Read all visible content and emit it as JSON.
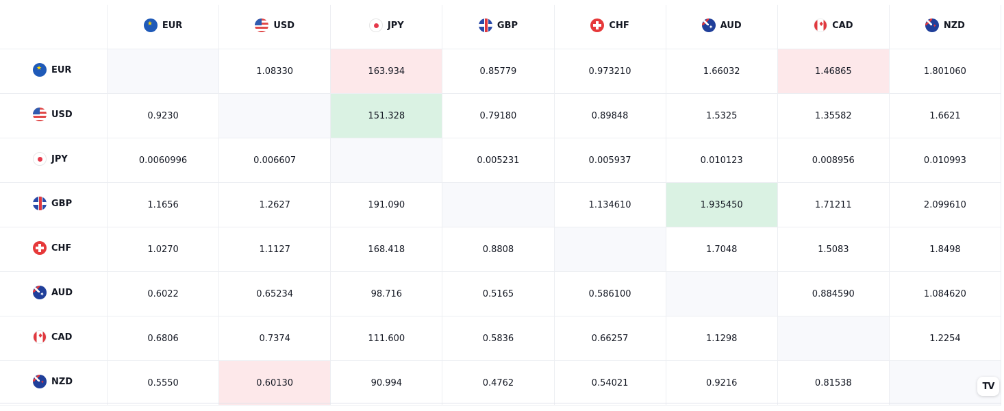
{
  "currencies": [
    "EUR",
    "USD",
    "JPY",
    "GBP",
    "CHF",
    "AUD",
    "CAD",
    "NZD"
  ],
  "flag_icons": [
    "eu-flag-icon",
    "us-flag-icon",
    "jp-flag-icon",
    "gb-flag-icon",
    "ch-flag-icon",
    "au-flag-icon",
    "ca-flag-icon",
    "nz-flag-icon"
  ],
  "colors": {
    "diagonal": "#f8f9fc",
    "decline": "#fde8ea",
    "advance": "#daf2e3"
  },
  "rows": [
    {
      "currency": "EUR",
      "cells": [
        {
          "v": "",
          "s": "diag"
        },
        {
          "v": "1.08330",
          "s": ""
        },
        {
          "v": "163.934",
          "s": "red"
        },
        {
          "v": "0.85779",
          "s": ""
        },
        {
          "v": "0.973210",
          "s": ""
        },
        {
          "v": "1.66032",
          "s": ""
        },
        {
          "v": "1.46865",
          "s": "red"
        },
        {
          "v": "1.801060",
          "s": ""
        }
      ]
    },
    {
      "currency": "USD",
      "cells": [
        {
          "v": "0.9230",
          "s": ""
        },
        {
          "v": "",
          "s": "diag"
        },
        {
          "v": "151.328",
          "s": "green"
        },
        {
          "v": "0.79180",
          "s": ""
        },
        {
          "v": "0.89848",
          "s": ""
        },
        {
          "v": "1.5325",
          "s": ""
        },
        {
          "v": "1.35582",
          "s": ""
        },
        {
          "v": "1.6621",
          "s": ""
        }
      ]
    },
    {
      "currency": "JPY",
      "cells": [
        {
          "v": "0.0060996",
          "s": ""
        },
        {
          "v": "0.006607",
          "s": ""
        },
        {
          "v": "",
          "s": "diag"
        },
        {
          "v": "0.005231",
          "s": ""
        },
        {
          "v": "0.005937",
          "s": ""
        },
        {
          "v": "0.010123",
          "s": ""
        },
        {
          "v": "0.008956",
          "s": ""
        },
        {
          "v": "0.010993",
          "s": ""
        }
      ]
    },
    {
      "currency": "GBP",
      "cells": [
        {
          "v": "1.1656",
          "s": ""
        },
        {
          "v": "1.2627",
          "s": ""
        },
        {
          "v": "191.090",
          "s": ""
        },
        {
          "v": "",
          "s": "diag"
        },
        {
          "v": "1.134610",
          "s": ""
        },
        {
          "v": "1.935450",
          "s": "green"
        },
        {
          "v": "1.71211",
          "s": ""
        },
        {
          "v": "2.099610",
          "s": ""
        }
      ]
    },
    {
      "currency": "CHF",
      "cells": [
        {
          "v": "1.0270",
          "s": ""
        },
        {
          "v": "1.1127",
          "s": ""
        },
        {
          "v": "168.418",
          "s": ""
        },
        {
          "v": "0.8808",
          "s": ""
        },
        {
          "v": "",
          "s": "diag"
        },
        {
          "v": "1.7048",
          "s": ""
        },
        {
          "v": "1.5083",
          "s": ""
        },
        {
          "v": "1.8498",
          "s": ""
        }
      ]
    },
    {
      "currency": "AUD",
      "cells": [
        {
          "v": "0.6022",
          "s": ""
        },
        {
          "v": "0.65234",
          "s": ""
        },
        {
          "v": "98.716",
          "s": ""
        },
        {
          "v": "0.5165",
          "s": ""
        },
        {
          "v": "0.586100",
          "s": ""
        },
        {
          "v": "",
          "s": "diag"
        },
        {
          "v": "0.884590",
          "s": ""
        },
        {
          "v": "1.084620",
          "s": ""
        }
      ]
    },
    {
      "currency": "CAD",
      "cells": [
        {
          "v": "0.6806",
          "s": ""
        },
        {
          "v": "0.7374",
          "s": ""
        },
        {
          "v": "111.600",
          "s": ""
        },
        {
          "v": "0.5836",
          "s": ""
        },
        {
          "v": "0.66257",
          "s": ""
        },
        {
          "v": "1.1298",
          "s": ""
        },
        {
          "v": "",
          "s": "diag"
        },
        {
          "v": "1.2254",
          "s": ""
        }
      ]
    },
    {
      "currency": "NZD",
      "cells": [
        {
          "v": "0.5550",
          "s": ""
        },
        {
          "v": "0.60130",
          "s": "red"
        },
        {
          "v": "90.994",
          "s": ""
        },
        {
          "v": "0.4762",
          "s": ""
        },
        {
          "v": "0.54021",
          "s": ""
        },
        {
          "v": "0.9216",
          "s": ""
        },
        {
          "v": "0.81538",
          "s": ""
        },
        {
          "v": "",
          "s": "diag"
        }
      ]
    }
  ],
  "logo": {
    "text": "TV",
    "icon": "tradingview-logo-icon"
  }
}
